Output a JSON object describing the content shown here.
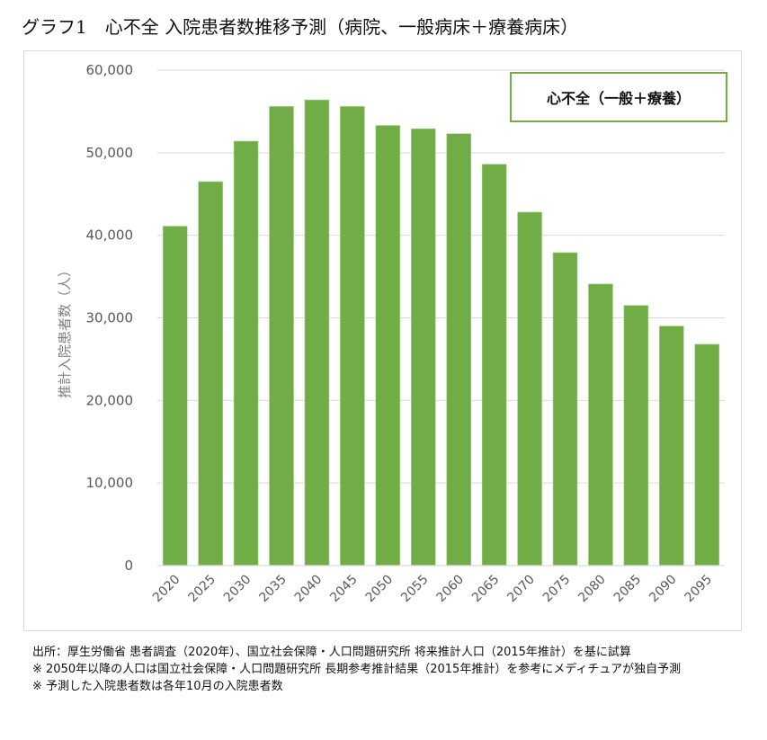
{
  "title": "グラフ1　心不全 入院患者数推移予測（病院、一般病床＋療養病床）",
  "chart_data": {
    "type": "bar",
    "title": "グラフ1　心不全 入院患者数推移予測（病院、一般病床＋療養病床）",
    "xlabel": "",
    "ylabel": "推計入院患者数（人）",
    "ylim": [
      0,
      60000
    ],
    "yticks": [
      0,
      10000,
      20000,
      30000,
      40000,
      50000,
      60000
    ],
    "ytick_labels": [
      "0",
      "10,000",
      "20,000",
      "30,000",
      "40,000",
      "50,000",
      "60,000"
    ],
    "grid": true,
    "legend": {
      "position": "top-right",
      "entries": [
        "心不全（一般＋療養）"
      ]
    },
    "categories": [
      "2020",
      "2025",
      "2030",
      "2035",
      "2040",
      "2045",
      "2050",
      "2055",
      "2060",
      "2065",
      "2070",
      "2075",
      "2080",
      "2085",
      "2090",
      "2095"
    ],
    "series": [
      {
        "name": "心不全（一般＋療養）",
        "color": "#70ad47",
        "values": [
          41100,
          46500,
          51400,
          55600,
          56400,
          55600,
          53300,
          52900,
          52300,
          48600,
          42800,
          37900,
          34100,
          31500,
          29000,
          26800
        ]
      }
    ]
  },
  "colors": {
    "bar": "#70ad47",
    "grid": "#d9d9d9",
    "tick_text": "#595959",
    "axis_label": "#7f7f7f",
    "legend_border": "#70ad47"
  },
  "notes": [
    "出所：厚生労働省 患者調査（2020年）、国立社会保障・人口問題研究所 将来推計人口（2015年推計）を基に試算",
    "※ 2050年以降の人口は国立社会保障・人口問題研究所 長期参考推計結果（2015年推計）を参考にメディチュアが独自予測",
    "※ 予測した入院患者数は各年10月の入院患者数"
  ]
}
